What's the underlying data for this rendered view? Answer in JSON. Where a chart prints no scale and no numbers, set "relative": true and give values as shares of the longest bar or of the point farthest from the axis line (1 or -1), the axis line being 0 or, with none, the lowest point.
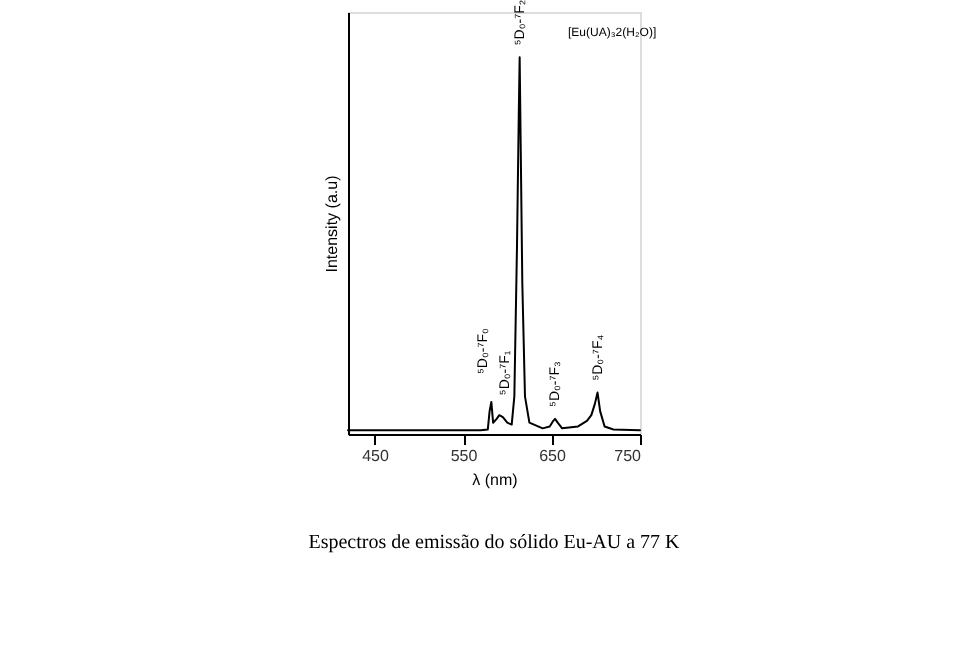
{
  "chart_data": {
    "type": "line",
    "xlabel": "λ (nm)",
    "ylabel": "Intensity (a.u)",
    "relative": true,
    "xlim": [
      420,
      750
    ],
    "xticks": [
      450,
      550,
      650,
      750
    ],
    "x": [
      420,
      500,
      570,
      578,
      580,
      582,
      584,
      588,
      591,
      595,
      600,
      605,
      608,
      611,
      613,
      614,
      615,
      617,
      620,
      625,
      640,
      648,
      652,
      654,
      657,
      662,
      680,
      690,
      695,
      699,
      702,
      705,
      710,
      720,
      750
    ],
    "series": [
      {
        "color": "#000000",
        "values": [
          0.01,
          0.01,
          0.01,
          0.012,
          0.06,
          0.085,
          0.03,
          0.04,
          0.05,
          0.045,
          0.03,
          0.025,
          0.1,
          0.5,
          0.85,
          1,
          0.8,
          0.4,
          0.1,
          0.03,
          0.015,
          0.02,
          0.035,
          0.04,
          0.03,
          0.015,
          0.02,
          0.035,
          0.05,
          0.08,
          0.11,
          0.06,
          0.02,
          0.012,
          0.01
        ]
      }
    ],
    "annotations": [
      {
        "text": "⁵D₀-⁷F₀",
        "x": 582,
        "y": 0.085
      },
      {
        "text": "⁵D₀-⁷F₁",
        "x": 591,
        "y": 0.05
      },
      {
        "text": "⁵D₀-⁷F₂",
        "x": 614,
        "y": 1
      },
      {
        "text": "⁵D₀-⁷F₃",
        "x": 654,
        "y": 0.04
      },
      {
        "text": "⁵D₀-⁷F₄",
        "x": 702,
        "y": 0.11
      },
      "[Eu(UA)₃2(H₂O)]",
      "Espectros de emissão do sólido Eu-AU  a 77 K"
    ]
  }
}
